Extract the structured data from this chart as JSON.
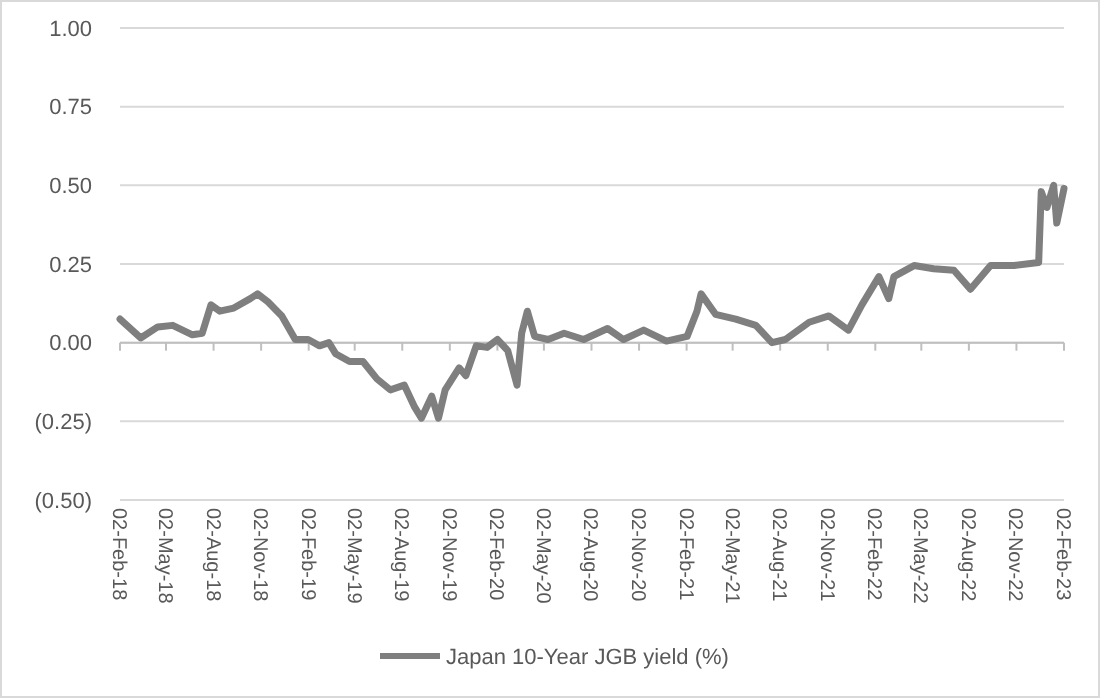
{
  "chart_data": {
    "type": "line",
    "legend": "bottom",
    "grid": "y",
    "xlim": [
      "2018-02-02",
      "2023-02-02"
    ],
    "xticks": [
      {
        "value": "2018-02-02",
        "label": "02-Feb-18"
      },
      {
        "value": "2018-05-02",
        "label": "02-May-18"
      },
      {
        "value": "2018-08-02",
        "label": "02-Aug-18"
      },
      {
        "value": "2018-11-02",
        "label": "02-Nov-18"
      },
      {
        "value": "2019-02-02",
        "label": "02-Feb-19"
      },
      {
        "value": "2019-05-02",
        "label": "02-May-19"
      },
      {
        "value": "2019-08-02",
        "label": "02-Aug-19"
      },
      {
        "value": "2019-11-02",
        "label": "02-Nov-19"
      },
      {
        "value": "2020-02-02",
        "label": "02-Feb-20"
      },
      {
        "value": "2020-05-02",
        "label": "02-May-20"
      },
      {
        "value": "2020-08-02",
        "label": "02-Aug-20"
      },
      {
        "value": "2020-11-02",
        "label": "02-Nov-20"
      },
      {
        "value": "2021-02-02",
        "label": "02-Feb-21"
      },
      {
        "value": "2021-05-02",
        "label": "02-May-21"
      },
      {
        "value": "2021-08-02",
        "label": "02-Aug-21"
      },
      {
        "value": "2021-11-02",
        "label": "02-Nov-21"
      },
      {
        "value": "2022-02-02",
        "label": "02-Feb-22"
      },
      {
        "value": "2022-05-02",
        "label": "02-May-22"
      },
      {
        "value": "2022-08-02",
        "label": "02-Aug-22"
      },
      {
        "value": "2022-11-02",
        "label": "02-Nov-22"
      },
      {
        "value": "2023-02-02",
        "label": "02-Feb-23"
      }
    ],
    "ylim": [
      -0.5,
      1
    ],
    "yticks": [
      {
        "value": 1,
        "label": "1.00"
      },
      {
        "value": 0.75,
        "label": "0.75"
      },
      {
        "value": 0.5,
        "label": "0.50"
      },
      {
        "value": 0.25,
        "label": "0.25"
      },
      {
        "value": 0,
        "label": "0.00"
      },
      {
        "value": -0.25,
        "label": "(0.25)"
      },
      {
        "value": -0.5,
        "label": "(0.50)"
      }
    ],
    "x": [
      "2018-02-02",
      "2018-03-14",
      "2018-04-16",
      "2018-05-15",
      "2018-06-22",
      "2018-07-11",
      "2018-07-28",
      "2018-08-14",
      "2018-09-10",
      "2018-10-12",
      "2018-10-26",
      "2018-11-15",
      "2018-12-12",
      "2019-01-07",
      "2019-02-01",
      "2019-02-23",
      "2019-03-13",
      "2019-03-26",
      "2019-04-22",
      "2019-05-18",
      "2019-06-14",
      "2019-07-10",
      "2019-08-06",
      "2019-08-26",
      "2019-09-08",
      "2019-09-28",
      "2019-10-11",
      "2019-10-24",
      "2019-11-20",
      "2019-12-03",
      "2019-12-23",
      "2020-01-13",
      "2020-02-02",
      "2020-02-22",
      "2020-03-11",
      "2020-03-20",
      "2020-03-31",
      "2020-04-14",
      "2020-05-10",
      "2020-06-10",
      "2020-07-18",
      "2020-09-02",
      "2020-10-03",
      "2020-11-11",
      "2020-12-25",
      "2021-02-03",
      "2021-02-22",
      "2021-03-02",
      "2021-03-30",
      "2021-05-08",
      "2021-06-16",
      "2021-07-17",
      "2021-08-12",
      "2021-09-27",
      "2021-11-04",
      "2021-12-12",
      "2022-01-07",
      "2022-02-09",
      "2022-02-28",
      "2022-03-10",
      "2022-04-18",
      "2022-05-26",
      "2022-07-04",
      "2022-08-05",
      "2022-09-13",
      "2022-10-28",
      "2022-12-15",
      "2022-12-20",
      "2022-12-31",
      "2023-01-13",
      "2023-01-19",
      "2023-02-02"
    ],
    "series": [
      {
        "name": "Japan 10-Year JGB yield (%)",
        "color": "#7f7f7f",
        "values": [
          0.075,
          0.015,
          0.05,
          0.055,
          0.025,
          0.03,
          0.12,
          0.1,
          0.11,
          0.14,
          0.155,
          0.13,
          0.085,
          0.01,
          0.01,
          -0.01,
          0,
          -0.035,
          -0.06,
          -0.06,
          -0.115,
          -0.15,
          -0.135,
          -0.205,
          -0.24,
          -0.17,
          -0.24,
          -0.15,
          -0.08,
          -0.105,
          -0.01,
          -0.015,
          0.01,
          -0.025,
          -0.135,
          0.03,
          0.1,
          0.02,
          0.01,
          0.03,
          0.01,
          0.045,
          0.01,
          0.04,
          0.005,
          0.02,
          0.1,
          0.155,
          0.09,
          0.075,
          0.055,
          0,
          0.01,
          0.065,
          0.085,
          0.04,
          0.12,
          0.21,
          0.14,
          0.21,
          0.245,
          0.235,
          0.23,
          0.17,
          0.245,
          0.245,
          0.255,
          0.48,
          0.43,
          0.5,
          0.38,
          0.49
        ]
      }
    ]
  }
}
